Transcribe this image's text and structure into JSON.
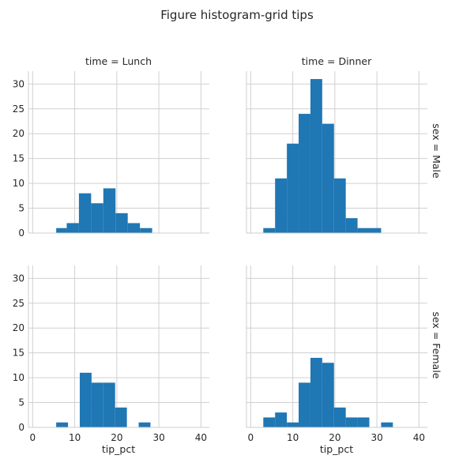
{
  "figure": {
    "title": "Figure histogram-grid tips"
  },
  "chart_data": {
    "type": "bar",
    "subtype": "histogram-facet-grid",
    "xlabel": "tip_pct",
    "ylabel": "",
    "xlim": [
      -1,
      42
    ],
    "ylim": [
      0,
      32.6
    ],
    "xticks": [
      0,
      10,
      20,
      30,
      40
    ],
    "yticks": [
      0,
      5,
      10,
      15,
      20,
      25,
      30
    ],
    "grid": true,
    "bar_color": "#1f77b4",
    "col_titles": [
      "time = Lunch",
      "time = Dinner"
    ],
    "row_titles": [
      "sex = Male",
      "sex = Female"
    ],
    "panels": [
      {
        "row": 0,
        "col": 0,
        "bins": [
          {
            "x0": 5.6,
            "x1": 8.1,
            "count": 1
          },
          {
            "x0": 8.1,
            "x1": 11.0,
            "count": 2
          },
          {
            "x0": 11.0,
            "x1": 13.9,
            "count": 8
          },
          {
            "x0": 13.9,
            "x1": 16.8,
            "count": 6
          },
          {
            "x0": 16.8,
            "x1": 19.7,
            "count": 9
          },
          {
            "x0": 19.7,
            "x1": 22.6,
            "count": 4
          },
          {
            "x0": 22.6,
            "x1": 25.5,
            "count": 2
          },
          {
            "x0": 25.5,
            "x1": 28.4,
            "count": 1
          }
        ]
      },
      {
        "row": 0,
        "col": 1,
        "bins": [
          {
            "x0": 3.0,
            "x1": 5.8,
            "count": 1
          },
          {
            "x0": 5.8,
            "x1": 8.6,
            "count": 11
          },
          {
            "x0": 8.6,
            "x1": 11.4,
            "count": 18
          },
          {
            "x0": 11.4,
            "x1": 14.2,
            "count": 24
          },
          {
            "x0": 14.2,
            "x1": 17.0,
            "count": 31
          },
          {
            "x0": 17.0,
            "x1": 19.8,
            "count": 22
          },
          {
            "x0": 19.8,
            "x1": 22.6,
            "count": 11
          },
          {
            "x0": 22.6,
            "x1": 25.4,
            "count": 3
          },
          {
            "x0": 25.4,
            "x1": 28.2,
            "count": 1
          },
          {
            "x0": 28.2,
            "x1": 31.0,
            "count": 1
          }
        ]
      },
      {
        "row": 1,
        "col": 0,
        "bins": [
          {
            "x0": 5.6,
            "x1": 8.4,
            "count": 1
          },
          {
            "x0": 8.4,
            "x1": 11.2,
            "count": 0
          },
          {
            "x0": 11.2,
            "x1": 14.0,
            "count": 11
          },
          {
            "x0": 14.0,
            "x1": 16.8,
            "count": 9
          },
          {
            "x0": 16.8,
            "x1": 19.6,
            "count": 9
          },
          {
            "x0": 19.6,
            "x1": 22.4,
            "count": 4
          },
          {
            "x0": 22.4,
            "x1": 25.2,
            "count": 0
          },
          {
            "x0": 25.2,
            "x1": 28.0,
            "count": 1
          }
        ]
      },
      {
        "row": 1,
        "col": 1,
        "bins": [
          {
            "x0": 3.0,
            "x1": 5.8,
            "count": 2
          },
          {
            "x0": 5.8,
            "x1": 8.6,
            "count": 3
          },
          {
            "x0": 8.6,
            "x1": 11.4,
            "count": 1
          },
          {
            "x0": 11.4,
            "x1": 14.2,
            "count": 9
          },
          {
            "x0": 14.2,
            "x1": 17.0,
            "count": 14
          },
          {
            "x0": 17.0,
            "x1": 19.8,
            "count": 13
          },
          {
            "x0": 19.8,
            "x1": 22.6,
            "count": 4
          },
          {
            "x0": 22.6,
            "x1": 25.4,
            "count": 2
          },
          {
            "x0": 25.4,
            "x1": 28.2,
            "count": 2
          },
          {
            "x0": 28.2,
            "x1": 31.0,
            "count": 0
          },
          {
            "x0": 31.0,
            "x1": 33.8,
            "count": 1
          }
        ]
      }
    ]
  }
}
